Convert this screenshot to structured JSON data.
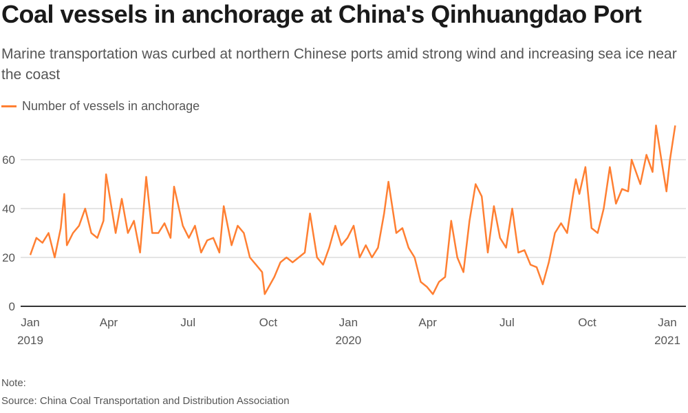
{
  "title": "Coal vessels in anchorage at China's Qinhuangdao Port",
  "subtitle": "Marine transportation was curbed at northern Chinese ports amid strong wind and increasing sea ice near the coast",
  "note": "Note:",
  "source": "Source: China Coal Transportation and Distribution Association",
  "colors": {
    "series": "#ff7f32",
    "grid": "#c8c8c8",
    "axis": "#333333"
  },
  "chart_data": {
    "type": "line",
    "title": "Coal vessels in anchorage at China's Qinhuangdao Port",
    "xlabel": "",
    "ylabel": "",
    "ylim": [
      0,
      75
    ],
    "xlim": [
      "2019-01-01",
      "2021-01-10"
    ],
    "grid": true,
    "legend_position": "top-left",
    "y_ticks": [
      "0",
      "20",
      "40",
      "60"
    ],
    "x_ticks": [
      {
        "date": "2019-01-01",
        "label": "Jan",
        "year": "2019"
      },
      {
        "date": "2019-04-01",
        "label": "Apr",
        "year": ""
      },
      {
        "date": "2019-07-01",
        "label": "Jul",
        "year": ""
      },
      {
        "date": "2019-10-01",
        "label": "Oct",
        "year": ""
      },
      {
        "date": "2020-01-01",
        "label": "Jan",
        "year": "2020"
      },
      {
        "date": "2020-04-01",
        "label": "Apr",
        "year": ""
      },
      {
        "date": "2020-07-01",
        "label": "Jul",
        "year": ""
      },
      {
        "date": "2020-10-01",
        "label": "Oct",
        "year": ""
      },
      {
        "date": "2021-01-01",
        "label": "Jan",
        "year": "2021"
      }
    ],
    "series": [
      {
        "name": "Number of vessels in anchorage",
        "points": [
          [
            "2019-01-01",
            21
          ],
          [
            "2019-01-08",
            28
          ],
          [
            "2019-01-15",
            26
          ],
          [
            "2019-01-22",
            30
          ],
          [
            "2019-01-29",
            20
          ],
          [
            "2019-02-05",
            32
          ],
          [
            "2019-02-09",
            46
          ],
          [
            "2019-02-12",
            25
          ],
          [
            "2019-02-19",
            30
          ],
          [
            "2019-02-26",
            33
          ],
          [
            "2019-03-05",
            40
          ],
          [
            "2019-03-12",
            30
          ],
          [
            "2019-03-19",
            28
          ],
          [
            "2019-03-26",
            35
          ],
          [
            "2019-03-29",
            54
          ],
          [
            "2019-04-09",
            30
          ],
          [
            "2019-04-16",
            44
          ],
          [
            "2019-04-23",
            30
          ],
          [
            "2019-04-30",
            35
          ],
          [
            "2019-05-07",
            22
          ],
          [
            "2019-05-14",
            53
          ],
          [
            "2019-05-21",
            30
          ],
          [
            "2019-05-28",
            30
          ],
          [
            "2019-06-04",
            34
          ],
          [
            "2019-06-11",
            28
          ],
          [
            "2019-06-15",
            49
          ],
          [
            "2019-06-25",
            33
          ],
          [
            "2019-07-02",
            28
          ],
          [
            "2019-07-09",
            33
          ],
          [
            "2019-07-16",
            22
          ],
          [
            "2019-07-23",
            27
          ],
          [
            "2019-07-30",
            28
          ],
          [
            "2019-08-06",
            22
          ],
          [
            "2019-08-11",
            41
          ],
          [
            "2019-08-20",
            25
          ],
          [
            "2019-08-27",
            33
          ],
          [
            "2019-09-03",
            30
          ],
          [
            "2019-09-10",
            20
          ],
          [
            "2019-09-17",
            17
          ],
          [
            "2019-09-24",
            14
          ],
          [
            "2019-09-27",
            5
          ],
          [
            "2019-10-08",
            12
          ],
          [
            "2019-10-15",
            18
          ],
          [
            "2019-10-22",
            20
          ],
          [
            "2019-10-29",
            18
          ],
          [
            "2019-11-05",
            20
          ],
          [
            "2019-11-12",
            22
          ],
          [
            "2019-11-18",
            38
          ],
          [
            "2019-11-26",
            20
          ],
          [
            "2019-12-03",
            17
          ],
          [
            "2019-12-10",
            24
          ],
          [
            "2019-12-17",
            33
          ],
          [
            "2019-12-24",
            25
          ],
          [
            "2019-12-31",
            28
          ],
          [
            "2020-01-07",
            33
          ],
          [
            "2020-01-14",
            20
          ],
          [
            "2020-01-21",
            25
          ],
          [
            "2020-01-28",
            20
          ],
          [
            "2020-02-04",
            24
          ],
          [
            "2020-02-11",
            38
          ],
          [
            "2020-02-16",
            51
          ],
          [
            "2020-02-25",
            30
          ],
          [
            "2020-03-03",
            32
          ],
          [
            "2020-03-10",
            24
          ],
          [
            "2020-03-17",
            20
          ],
          [
            "2020-03-24",
            10
          ],
          [
            "2020-03-31",
            8
          ],
          [
            "2020-04-07",
            5
          ],
          [
            "2020-04-14",
            10
          ],
          [
            "2020-04-21",
            12
          ],
          [
            "2020-04-28",
            35
          ],
          [
            "2020-05-05",
            20
          ],
          [
            "2020-05-12",
            14
          ],
          [
            "2020-05-19",
            35
          ],
          [
            "2020-05-26",
            50
          ],
          [
            "2020-06-02",
            45
          ],
          [
            "2020-06-09",
            22
          ],
          [
            "2020-06-16",
            41
          ],
          [
            "2020-06-23",
            28
          ],
          [
            "2020-06-30",
            24
          ],
          [
            "2020-07-07",
            40
          ],
          [
            "2020-07-14",
            22
          ],
          [
            "2020-07-21",
            23
          ],
          [
            "2020-07-28",
            17
          ],
          [
            "2020-08-04",
            16
          ],
          [
            "2020-08-11",
            9
          ],
          [
            "2020-08-18",
            18
          ],
          [
            "2020-08-25",
            30
          ],
          [
            "2020-09-01",
            34
          ],
          [
            "2020-09-08",
            30
          ],
          [
            "2020-09-15",
            46
          ],
          [
            "2020-09-18",
            52
          ],
          [
            "2020-09-22",
            46
          ],
          [
            "2020-09-29",
            57
          ],
          [
            "2020-10-06",
            32
          ],
          [
            "2020-10-13",
            30
          ],
          [
            "2020-10-20",
            40
          ],
          [
            "2020-10-27",
            57
          ],
          [
            "2020-11-03",
            42
          ],
          [
            "2020-11-10",
            48
          ],
          [
            "2020-11-17",
            47
          ],
          [
            "2020-11-21",
            60
          ],
          [
            "2020-12-01",
            50
          ],
          [
            "2020-12-08",
            62
          ],
          [
            "2020-12-15",
            55
          ],
          [
            "2020-12-19",
            74
          ],
          [
            "2020-12-26",
            58
          ],
          [
            "2020-12-31",
            47
          ],
          [
            "2021-01-04",
            60
          ],
          [
            "2021-01-10",
            74
          ]
        ]
      }
    ]
  }
}
